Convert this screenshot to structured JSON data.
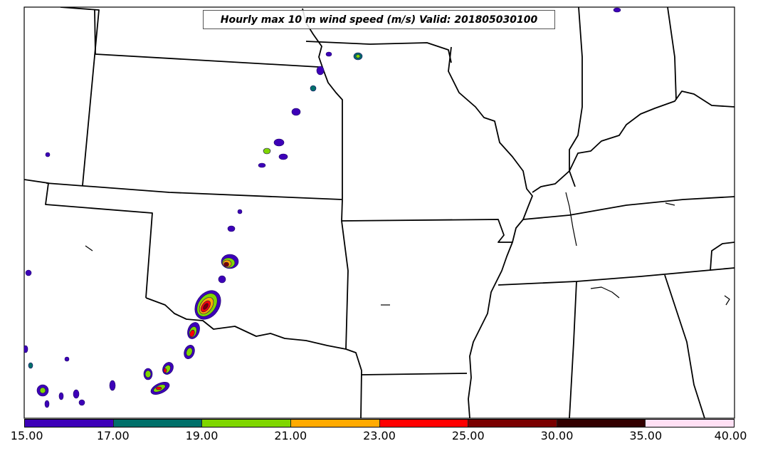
{
  "title": "Hourly max 10 m wind speed (m/s) Valid: 201805030100",
  "colorbar": {
    "ticks": [
      "15.00",
      "17.00",
      "19.00",
      "21.00",
      "23.00",
      "25.00",
      "30.00",
      "35.00",
      "40.00"
    ],
    "colors": [
      "#3d00b8",
      "#00706a",
      "#7fd600",
      "#ffaa00",
      "#ff0000",
      "#7a0000",
      "#330000",
      "#ffe0f4"
    ]
  },
  "styles": {
    "land": "#ffffff",
    "border": "#000000",
    "ocean": "#ffffff"
  }
}
